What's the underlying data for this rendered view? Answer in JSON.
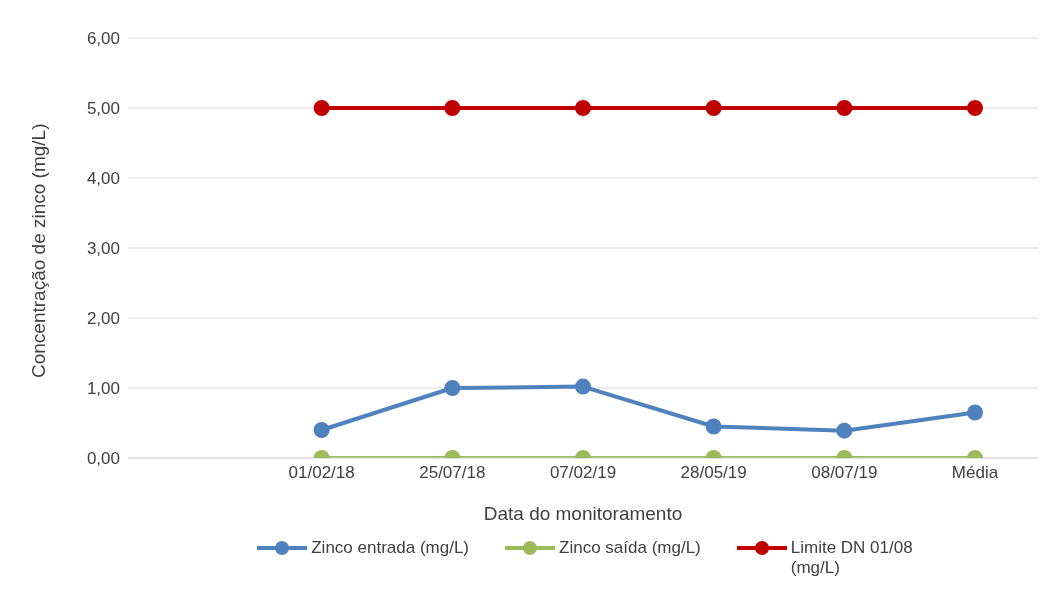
{
  "chart_data": {
    "type": "line",
    "xlabel": "Data do monitoramento",
    "ylabel": "Concentração de zinco (mg/L)",
    "categories": [
      null,
      "01/02/18",
      "25/07/18",
      "07/02/19",
      "28/05/19",
      "08/07/19",
      "Média"
    ],
    "series": [
      {
        "name": "Zinco entrada (mg/L)",
        "color": "#4f81bd",
        "values": [
          null,
          0.4,
          1.0,
          1.02,
          0.45,
          0.39,
          0.65
        ]
      },
      {
        "name": "Zinco saída (mg/L)",
        "color": "#9bbb59",
        "values": [
          null,
          0,
          0,
          0,
          0,
          0,
          0
        ]
      },
      {
        "name": "Limite DN 01/08 (mg/L)",
        "color": "#c00000",
        "values": [
          null,
          5,
          5,
          5,
          5,
          5,
          5
        ]
      }
    ],
    "ylim": [
      0,
      6
    ],
    "yticks": [
      {
        "value": 0,
        "label": "0,00"
      },
      {
        "value": 1,
        "label": "1,00"
      },
      {
        "value": 2,
        "label": "2,00"
      },
      {
        "value": 3,
        "label": "3,00"
      },
      {
        "value": 4,
        "label": "4,00"
      },
      {
        "value": 5,
        "label": "5,00"
      },
      {
        "value": 6,
        "label": "6,00"
      }
    ],
    "grid": "y",
    "legend": "bottom",
    "marker": "circle",
    "line_style": "solid"
  }
}
